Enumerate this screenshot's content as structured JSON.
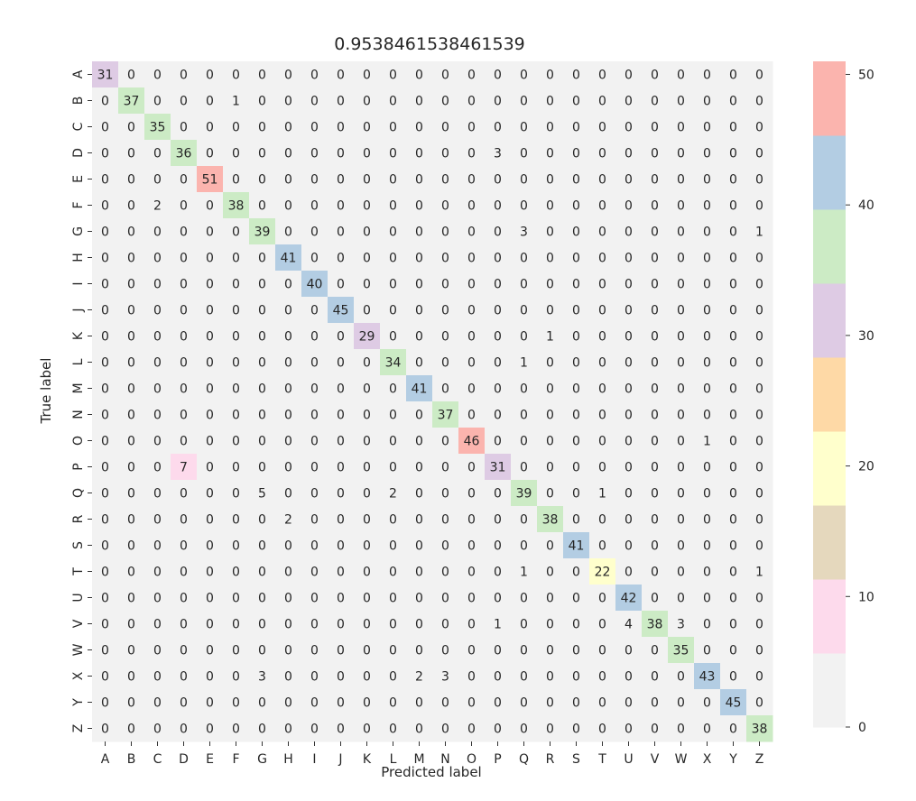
{
  "chart_data": {
    "type": "heatmap",
    "title": "0.9538461538461539",
    "xlabel": "Predicted label",
    "ylabel": "True label",
    "x_categories": [
      "A",
      "B",
      "C",
      "D",
      "E",
      "F",
      "G",
      "H",
      "I",
      "J",
      "K",
      "L",
      "M",
      "N",
      "O",
      "P",
      "Q",
      "R",
      "S",
      "T",
      "U",
      "V",
      "W",
      "X",
      "Y",
      "Z"
    ],
    "y_categories": [
      "A",
      "B",
      "C",
      "D",
      "E",
      "F",
      "G",
      "H",
      "I",
      "J",
      "K",
      "L",
      "M",
      "N",
      "O",
      "P",
      "Q",
      "R",
      "S",
      "T",
      "U",
      "V",
      "W",
      "X",
      "Y",
      "Z"
    ],
    "matrix": [
      [
        31,
        0,
        0,
        0,
        0,
        0,
        0,
        0,
        0,
        0,
        0,
        0,
        0,
        0,
        0,
        0,
        0,
        0,
        0,
        0,
        0,
        0,
        0,
        0,
        0,
        0
      ],
      [
        0,
        37,
        0,
        0,
        0,
        1,
        0,
        0,
        0,
        0,
        0,
        0,
        0,
        0,
        0,
        0,
        0,
        0,
        0,
        0,
        0,
        0,
        0,
        0,
        0,
        0
      ],
      [
        0,
        0,
        35,
        0,
        0,
        0,
        0,
        0,
        0,
        0,
        0,
        0,
        0,
        0,
        0,
        0,
        0,
        0,
        0,
        0,
        0,
        0,
        0,
        0,
        0,
        0
      ],
      [
        0,
        0,
        0,
        36,
        0,
        0,
        0,
        0,
        0,
        0,
        0,
        0,
        0,
        0,
        0,
        3,
        0,
        0,
        0,
        0,
        0,
        0,
        0,
        0,
        0,
        0
      ],
      [
        0,
        0,
        0,
        0,
        51,
        0,
        0,
        0,
        0,
        0,
        0,
        0,
        0,
        0,
        0,
        0,
        0,
        0,
        0,
        0,
        0,
        0,
        0,
        0,
        0,
        0
      ],
      [
        0,
        0,
        2,
        0,
        0,
        38,
        0,
        0,
        0,
        0,
        0,
        0,
        0,
        0,
        0,
        0,
        0,
        0,
        0,
        0,
        0,
        0,
        0,
        0,
        0,
        0
      ],
      [
        0,
        0,
        0,
        0,
        0,
        0,
        39,
        0,
        0,
        0,
        0,
        0,
        0,
        0,
        0,
        0,
        3,
        0,
        0,
        0,
        0,
        0,
        0,
        0,
        0,
        1
      ],
      [
        0,
        0,
        0,
        0,
        0,
        0,
        0,
        41,
        0,
        0,
        0,
        0,
        0,
        0,
        0,
        0,
        0,
        0,
        0,
        0,
        0,
        0,
        0,
        0,
        0,
        0
      ],
      [
        0,
        0,
        0,
        0,
        0,
        0,
        0,
        0,
        40,
        0,
        0,
        0,
        0,
        0,
        0,
        0,
        0,
        0,
        0,
        0,
        0,
        0,
        0,
        0,
        0,
        0
      ],
      [
        0,
        0,
        0,
        0,
        0,
        0,
        0,
        0,
        0,
        45,
        0,
        0,
        0,
        0,
        0,
        0,
        0,
        0,
        0,
        0,
        0,
        0,
        0,
        0,
        0,
        0
      ],
      [
        0,
        0,
        0,
        0,
        0,
        0,
        0,
        0,
        0,
        0,
        29,
        0,
        0,
        0,
        0,
        0,
        0,
        1,
        0,
        0,
        0,
        0,
        0,
        0,
        0,
        0
      ],
      [
        0,
        0,
        0,
        0,
        0,
        0,
        0,
        0,
        0,
        0,
        0,
        34,
        0,
        0,
        0,
        0,
        1,
        0,
        0,
        0,
        0,
        0,
        0,
        0,
        0,
        0
      ],
      [
        0,
        0,
        0,
        0,
        0,
        0,
        0,
        0,
        0,
        0,
        0,
        0,
        41,
        0,
        0,
        0,
        0,
        0,
        0,
        0,
        0,
        0,
        0,
        0,
        0,
        0
      ],
      [
        0,
        0,
        0,
        0,
        0,
        0,
        0,
        0,
        0,
        0,
        0,
        0,
        0,
        37,
        0,
        0,
        0,
        0,
        0,
        0,
        0,
        0,
        0,
        0,
        0,
        0
      ],
      [
        0,
        0,
        0,
        0,
        0,
        0,
        0,
        0,
        0,
        0,
        0,
        0,
        0,
        0,
        46,
        0,
        0,
        0,
        0,
        0,
        0,
        0,
        0,
        1,
        0,
        0
      ],
      [
        0,
        0,
        0,
        7,
        0,
        0,
        0,
        0,
        0,
        0,
        0,
        0,
        0,
        0,
        0,
        31,
        0,
        0,
        0,
        0,
        0,
        0,
        0,
        0,
        0,
        0
      ],
      [
        0,
        0,
        0,
        0,
        0,
        0,
        5,
        0,
        0,
        0,
        0,
        2,
        0,
        0,
        0,
        0,
        39,
        0,
        0,
        1,
        0,
        0,
        0,
        0,
        0,
        0
      ],
      [
        0,
        0,
        0,
        0,
        0,
        0,
        0,
        2,
        0,
        0,
        0,
        0,
        0,
        0,
        0,
        0,
        0,
        38,
        0,
        0,
        0,
        0,
        0,
        0,
        0,
        0
      ],
      [
        0,
        0,
        0,
        0,
        0,
        0,
        0,
        0,
        0,
        0,
        0,
        0,
        0,
        0,
        0,
        0,
        0,
        0,
        41,
        0,
        0,
        0,
        0,
        0,
        0,
        0
      ],
      [
        0,
        0,
        0,
        0,
        0,
        0,
        0,
        0,
        0,
        0,
        0,
        0,
        0,
        0,
        0,
        0,
        1,
        0,
        0,
        22,
        0,
        0,
        0,
        0,
        0,
        1
      ],
      [
        0,
        0,
        0,
        0,
        0,
        0,
        0,
        0,
        0,
        0,
        0,
        0,
        0,
        0,
        0,
        0,
        0,
        0,
        0,
        0,
        42,
        0,
        0,
        0,
        0,
        0
      ],
      [
        0,
        0,
        0,
        0,
        0,
        0,
        0,
        0,
        0,
        0,
        0,
        0,
        0,
        0,
        0,
        1,
        0,
        0,
        0,
        0,
        4,
        38,
        3,
        0,
        0,
        0
      ],
      [
        0,
        0,
        0,
        0,
        0,
        0,
        0,
        0,
        0,
        0,
        0,
        0,
        0,
        0,
        0,
        0,
        0,
        0,
        0,
        0,
        0,
        0,
        35,
        0,
        0,
        0
      ],
      [
        0,
        0,
        0,
        0,
        0,
        0,
        3,
        0,
        0,
        0,
        0,
        0,
        2,
        3,
        0,
        0,
        0,
        0,
        0,
        0,
        0,
        0,
        0,
        43,
        0,
        0
      ],
      [
        0,
        0,
        0,
        0,
        0,
        0,
        0,
        0,
        0,
        0,
        0,
        0,
        0,
        0,
        0,
        0,
        0,
        0,
        0,
        0,
        0,
        0,
        0,
        0,
        45,
        0
      ],
      [
        0,
        0,
        0,
        0,
        0,
        0,
        0,
        0,
        0,
        0,
        0,
        0,
        0,
        0,
        0,
        0,
        0,
        0,
        0,
        0,
        0,
        0,
        0,
        0,
        0,
        38
      ]
    ],
    "colormap": {
      "name": "Pastel1 (reversed)",
      "vmin": 0,
      "vmax": 51,
      "colors": [
        "#f2f2f2",
        "#fddaec",
        "#e5d8bd",
        "#ffffcc",
        "#fed9a6",
        "#decbe4",
        "#ccebc5",
        "#b3cde3",
        "#fbb4ae"
      ]
    },
    "colorbar_ticks": [
      0,
      10,
      20,
      30,
      40,
      50
    ],
    "grid": false
  }
}
